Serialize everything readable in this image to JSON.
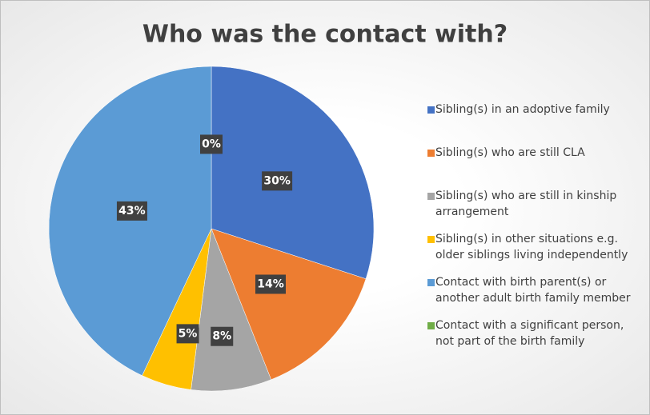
{
  "chart_data": {
    "type": "pie",
    "title": "Who was the contact with?",
    "categories": [
      "Sibling(s) in an adoptive family",
      "Sibling(s) who are still CLA",
      "Sibling(s) who are still in kinship arrangement",
      "Sibling(s) in other situations e.g. older siblings living independently",
      "Contact with birth parent(s) or another adult birth family member",
      "Contact with a significant person, not part of the birth family"
    ],
    "values": [
      30,
      14,
      8,
      5,
      43,
      0
    ],
    "value_labels": [
      "30%",
      "14%",
      "8%",
      "5%",
      "43%",
      "0%"
    ],
    "colors": [
      "#4472c4",
      "#ed7d31",
      "#a5a5a5",
      "#ffc000",
      "#5b9bd5",
      "#70ad47"
    ],
    "legend": "right"
  }
}
